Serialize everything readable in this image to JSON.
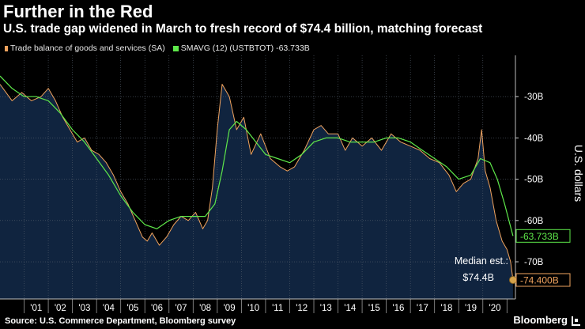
{
  "header": {
    "title": "Further in the Red",
    "subtitle": "U.S. trade gap widened in March to fresh record of $74.4 billion, matching forecast"
  },
  "legend": {
    "series1": "Trade balance of goods and services (SA)",
    "series2": "SMAVG (12)  (USTBTOT)  -63.733B"
  },
  "footer": {
    "source": "Source: U.S. Commerce Department, Bloomberg survey",
    "brand": "Bloomberg"
  },
  "colors": {
    "background": "#000000",
    "plot_fill": "#10243f",
    "series1": "#f0a35e",
    "series2": "#5ee84a",
    "grid": "#56606e"
  },
  "chart_data": {
    "type": "line",
    "title": "Further in the Red",
    "subtitle": "U.S. trade gap widened in March to fresh record of $74.4 billion, matching forecast",
    "ylabel": "U.S. dollars",
    "xlabel": "",
    "ylim": [
      -79,
      -20
    ],
    "xlim": [
      2000.0,
      2021.35
    ],
    "y_ticks": [
      {
        "value": -30,
        "label": "-30B"
      },
      {
        "value": -40,
        "label": "-40B"
      },
      {
        "value": -50,
        "label": "-50B"
      },
      {
        "value": -60,
        "label": "-60B"
      },
      {
        "value": -70,
        "label": "-70B"
      }
    ],
    "x_ticks": [
      {
        "value": 2001.5,
        "label": "'01"
      },
      {
        "value": 2002.5,
        "label": "'02"
      },
      {
        "value": 2003.5,
        "label": "'03"
      },
      {
        "value": 2004.5,
        "label": "'04"
      },
      {
        "value": 2005.5,
        "label": "'05"
      },
      {
        "value": 2006.5,
        "label": "'06"
      },
      {
        "value": 2007.5,
        "label": "'07"
      },
      {
        "value": 2008.5,
        "label": "'08"
      },
      {
        "value": 2009.5,
        "label": "'09"
      },
      {
        "value": 2010.5,
        "label": "'10"
      },
      {
        "value": 2011.5,
        "label": "'11"
      },
      {
        "value": 2012.5,
        "label": "'12"
      },
      {
        "value": 2013.5,
        "label": "'13"
      },
      {
        "value": 2014.5,
        "label": "'14"
      },
      {
        "value": 2015.5,
        "label": "'15"
      },
      {
        "value": 2016.5,
        "label": "'16"
      },
      {
        "value": 2017.5,
        "label": "'17"
      },
      {
        "value": 2018.5,
        "label": "'18"
      },
      {
        "value": 2019.5,
        "label": "'19"
      },
      {
        "value": 2020.5,
        "label": "'20"
      }
    ],
    "grid": true,
    "legend_position": "top-left",
    "series": [
      {
        "name": "Trade balance of goods and services (SA)",
        "color": "#f0a35e",
        "points": [
          [
            2000.0,
            -27
          ],
          [
            2000.5,
            -31
          ],
          [
            2000.9,
            -29
          ],
          [
            2001.3,
            -31
          ],
          [
            2001.7,
            -30
          ],
          [
            2002.0,
            -28
          ],
          [
            2002.3,
            -31
          ],
          [
            2002.6,
            -35
          ],
          [
            2002.9,
            -38
          ],
          [
            2003.2,
            -41
          ],
          [
            2003.5,
            -40
          ],
          [
            2003.8,
            -43
          ],
          [
            2004.1,
            -44
          ],
          [
            2004.4,
            -46
          ],
          [
            2004.7,
            -49
          ],
          [
            2005.0,
            -53
          ],
          [
            2005.3,
            -56
          ],
          [
            2005.6,
            -60
          ],
          [
            2005.9,
            -64
          ],
          [
            2006.1,
            -65
          ],
          [
            2006.3,
            -63
          ],
          [
            2006.6,
            -66
          ],
          [
            2006.9,
            -64
          ],
          [
            2007.2,
            -61
          ],
          [
            2007.5,
            -59
          ],
          [
            2007.8,
            -60
          ],
          [
            2008.1,
            -58
          ],
          [
            2008.4,
            -62
          ],
          [
            2008.6,
            -60
          ],
          [
            2008.8,
            -52
          ],
          [
            2009.0,
            -38
          ],
          [
            2009.2,
            -27
          ],
          [
            2009.5,
            -30
          ],
          [
            2009.8,
            -38
          ],
          [
            2010.1,
            -35
          ],
          [
            2010.4,
            -44
          ],
          [
            2010.8,
            -39
          ],
          [
            2011.2,
            -45
          ],
          [
            2011.6,
            -47
          ],
          [
            2011.9,
            -48
          ],
          [
            2012.2,
            -47
          ],
          [
            2012.6,
            -43
          ],
          [
            2013.0,
            -38
          ],
          [
            2013.3,
            -37
          ],
          [
            2013.6,
            -39
          ],
          [
            2014.0,
            -39
          ],
          [
            2014.3,
            -43
          ],
          [
            2014.6,
            -40
          ],
          [
            2015.0,
            -42
          ],
          [
            2015.4,
            -40
          ],
          [
            2015.8,
            -43
          ],
          [
            2016.2,
            -39
          ],
          [
            2016.6,
            -41
          ],
          [
            2017.0,
            -42
          ],
          [
            2017.4,
            -43
          ],
          [
            2017.8,
            -45
          ],
          [
            2018.2,
            -46
          ],
          [
            2018.6,
            -49
          ],
          [
            2018.9,
            -53
          ],
          [
            2019.2,
            -51
          ],
          [
            2019.5,
            -50
          ],
          [
            2019.8,
            -45
          ],
          [
            2019.95,
            -38
          ],
          [
            2020.1,
            -48
          ],
          [
            2020.3,
            -52
          ],
          [
            2020.55,
            -60
          ],
          [
            2020.8,
            -65
          ],
          [
            2021.0,
            -67
          ],
          [
            2021.15,
            -70
          ],
          [
            2021.25,
            -74.4
          ]
        ]
      },
      {
        "name": "SMAVG (12)  (USTBTOT)",
        "color": "#5ee84a",
        "points": [
          [
            2000.0,
            -25
          ],
          [
            2000.5,
            -28
          ],
          [
            2001.0,
            -30
          ],
          [
            2001.5,
            -30
          ],
          [
            2002.0,
            -31
          ],
          [
            2002.5,
            -34
          ],
          [
            2003.0,
            -38
          ],
          [
            2003.5,
            -41
          ],
          [
            2004.0,
            -45
          ],
          [
            2004.5,
            -49
          ],
          [
            2005.0,
            -54
          ],
          [
            2005.5,
            -58
          ],
          [
            2006.0,
            -61
          ],
          [
            2006.5,
            -62
          ],
          [
            2007.0,
            -60
          ],
          [
            2007.5,
            -59
          ],
          [
            2008.0,
            -59
          ],
          [
            2008.5,
            -59
          ],
          [
            2008.9,
            -56
          ],
          [
            2009.2,
            -48
          ],
          [
            2009.5,
            -38
          ],
          [
            2009.8,
            -36
          ],
          [
            2010.2,
            -38
          ],
          [
            2010.6,
            -41
          ],
          [
            2011.0,
            -44
          ],
          [
            2011.5,
            -45
          ],
          [
            2012.0,
            -46
          ],
          [
            2012.5,
            -44
          ],
          [
            2013.0,
            -41
          ],
          [
            2013.5,
            -40
          ],
          [
            2014.0,
            -40
          ],
          [
            2014.5,
            -41
          ],
          [
            2015.0,
            -41
          ],
          [
            2015.5,
            -41
          ],
          [
            2016.0,
            -40
          ],
          [
            2016.5,
            -40
          ],
          [
            2017.0,
            -41
          ],
          [
            2017.5,
            -43
          ],
          [
            2018.0,
            -45
          ],
          [
            2018.5,
            -47
          ],
          [
            2019.0,
            -50
          ],
          [
            2019.5,
            -49
          ],
          [
            2019.9,
            -45
          ],
          [
            2020.3,
            -46
          ],
          [
            2020.6,
            -50
          ],
          [
            2020.9,
            -56
          ],
          [
            2021.25,
            -63.733
          ]
        ]
      }
    ],
    "value_tags": [
      {
        "series": 1,
        "value": -63.733,
        "label": "-63.733B"
      },
      {
        "series": 0,
        "value": -74.4,
        "label": "-74.400B"
      }
    ],
    "annotations": [
      {
        "text": "Median est.:",
        "x": 2021.25,
        "y": -74.4
      },
      {
        "text": "$74.4B",
        "x": 2021.25,
        "y": -74.4
      }
    ]
  }
}
